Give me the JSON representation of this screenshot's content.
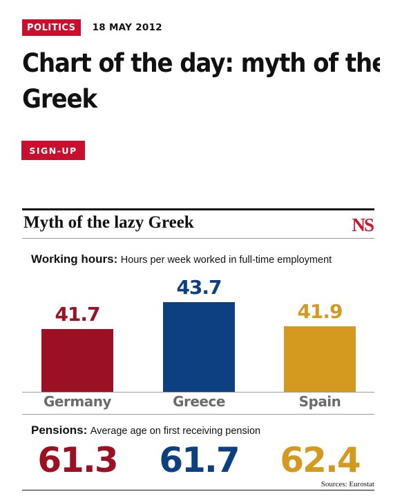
{
  "article": {
    "section": "POLITICS",
    "date": "18 MAY 2012",
    "headline_line1": "Chart of the day: myth of the lazy",
    "headline_line2": "Greek",
    "signup_label": "SIGN-UP"
  },
  "infographic": {
    "title": "Myth of the lazy Greek",
    "logo": "NS",
    "working_hours_heading": "Working hours:",
    "working_hours_desc": "Hours per week worked in full-time employment",
    "pensions_heading": "Pensions:",
    "pensions_desc": "Average age on first receiving pension",
    "source": "Sources: Eurostat"
  },
  "colors": {
    "accent_red": "#c8102e",
    "germany": "#9b1023",
    "greece": "#0d4080",
    "spain": "#d39a1f"
  },
  "chart_data": [
    {
      "type": "bar",
      "title": "Working hours:",
      "subtitle": "Hours per week worked in full-time employment",
      "categories": [
        "Germany",
        "Greece",
        "Spain"
      ],
      "values": [
        41.7,
        43.7,
        41.9
      ],
      "value_labels": [
        "41.7",
        "43.7",
        "41.9"
      ],
      "colors": [
        "#9b1023",
        "#0d4080",
        "#d39a1f"
      ]
    },
    {
      "type": "table",
      "title": "Pensions:",
      "subtitle": "Average age on first receiving pension",
      "categories": [
        "Germany",
        "Greece",
        "Spain"
      ],
      "values": [
        61.3,
        61.7,
        62.4
      ],
      "value_labels": [
        "61.3",
        "61.7",
        "62.4"
      ],
      "colors": [
        "#9b1023",
        "#0d4080",
        "#d39a1f"
      ]
    }
  ]
}
